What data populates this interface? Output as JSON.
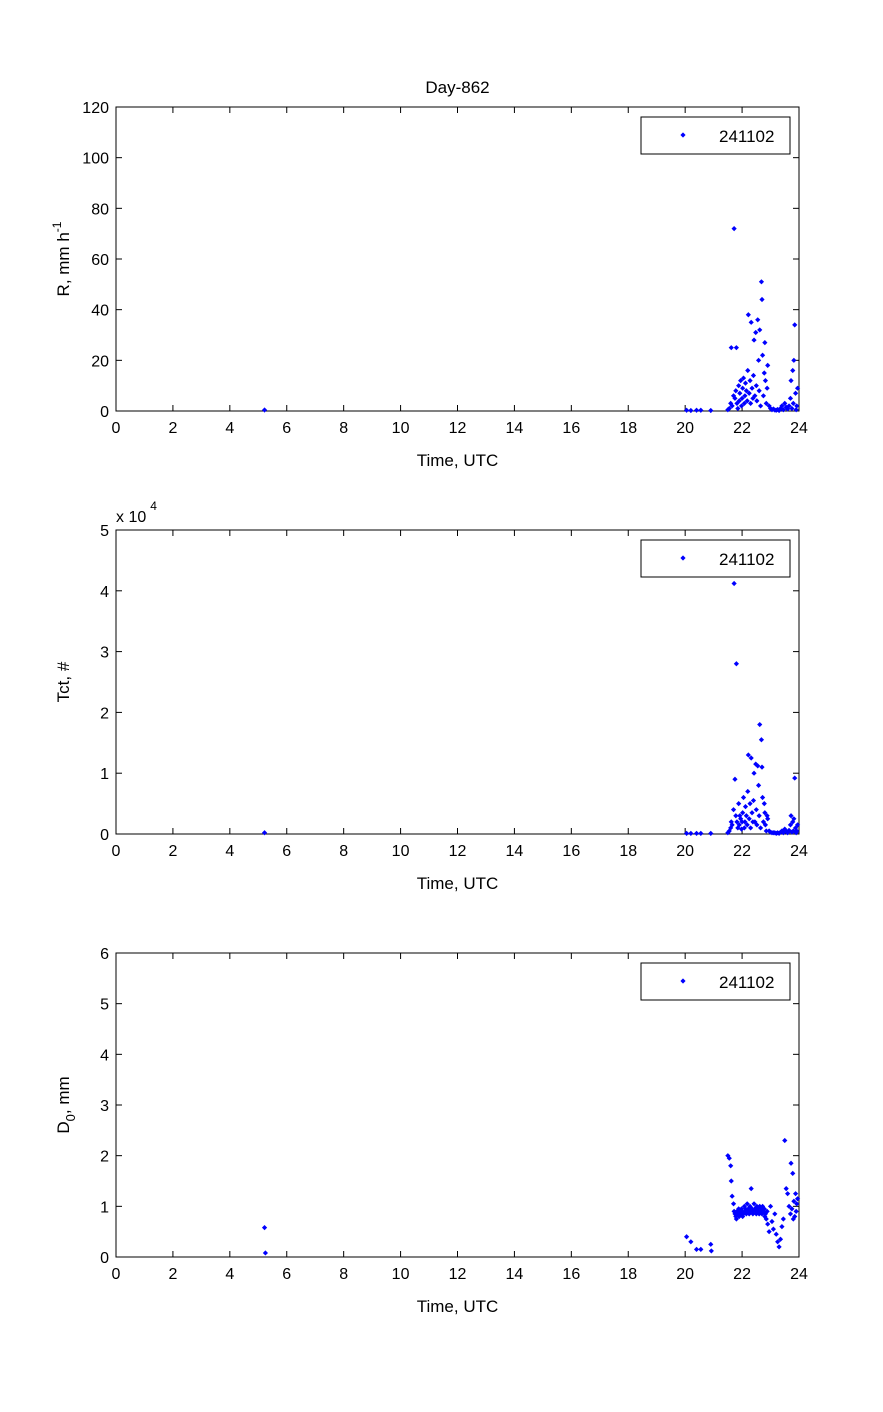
{
  "chart_data": [
    {
      "type": "scatter",
      "title": "Day-862",
      "xlabel": "Time, UTC",
      "ylabel": {
        "base": "R, mm h",
        "sup": "-1"
      },
      "xlim": [
        0,
        24
      ],
      "ylim": [
        0,
        120
      ],
      "xticks": [
        "0",
        "2",
        "4",
        "6",
        "8",
        "10",
        "12",
        "14",
        "16",
        "18",
        "20",
        "22",
        "24"
      ],
      "yticks": [
        "0",
        "20",
        "40",
        "60",
        "80",
        "100",
        "120"
      ],
      "exponent_label": "",
      "legend_position": "top-right",
      "grid": false,
      "marker_color": "#0000ff",
      "series": [
        {
          "name": "241102",
          "x": [
            5.22,
            20.05,
            20.2,
            20.4,
            20.55,
            20.9,
            21.5,
            21.55,
            21.6,
            21.62,
            21.65,
            21.7,
            21.72,
            21.75,
            21.78,
            21.8,
            21.82,
            21.85,
            21.88,
            21.9,
            21.92,
            21.95,
            21.98,
            22.0,
            22.02,
            22.05,
            22.08,
            22.1,
            22.12,
            22.15,
            22.18,
            22.2,
            22.22,
            22.25,
            22.28,
            22.3,
            22.32,
            22.35,
            22.38,
            22.4,
            22.42,
            22.45,
            22.48,
            22.5,
            22.52,
            22.55,
            22.58,
            22.6,
            22.62,
            22.65,
            22.68,
            22.7,
            22.72,
            22.75,
            22.78,
            22.8,
            22.82,
            22.85,
            22.88,
            22.9,
            22.95,
            23.0,
            23.05,
            23.1,
            23.15,
            23.2,
            23.25,
            23.3,
            23.35,
            23.4,
            23.45,
            23.5,
            23.55,
            23.6,
            23.65,
            23.7,
            23.72,
            23.75,
            23.78,
            23.8,
            23.82,
            23.85,
            23.88,
            23.9,
            23.92,
            23.95
          ],
          "y": [
            0.4,
            0.3,
            0.2,
            0.3,
            0.3,
            0.2,
            0.5,
            1,
            3,
            25,
            2,
            6,
            72,
            5,
            8,
            25,
            3,
            1,
            10,
            4,
            7,
            12,
            2,
            5,
            9,
            13,
            3,
            6,
            11,
            8,
            4,
            16,
            38,
            7,
            12,
            3,
            35,
            9,
            5,
            14,
            28,
            6,
            31,
            10,
            4,
            36,
            20,
            8,
            32,
            2,
            51,
            44,
            22,
            6,
            15,
            27,
            12,
            3,
            9,
            18,
            2,
            1,
            0.5,
            0.8,
            0.4,
            0.3,
            0.6,
            0.2,
            1,
            2,
            0.5,
            3,
            1.5,
            0.8,
            2,
            5,
            12,
            1,
            16,
            3,
            20,
            34,
            7,
            0.5,
            2,
            9
          ]
        }
      ]
    },
    {
      "type": "scatter",
      "title": "",
      "xlabel": "Time, UTC",
      "ylabel": {
        "base": "Tct, #",
        "sup": ""
      },
      "xlim": [
        0,
        24
      ],
      "ylim": [
        0,
        5
      ],
      "xticks": [
        "0",
        "2",
        "4",
        "6",
        "8",
        "10",
        "12",
        "14",
        "16",
        "18",
        "20",
        "22",
        "24"
      ],
      "yticks": [
        "0",
        "1",
        "2",
        "3",
        "4",
        "5"
      ],
      "exponent_label": {
        "base": "x 10",
        "sup": "4"
      },
      "legend_position": "top-right",
      "grid": false,
      "marker_color": "#0000ff",
      "series": [
        {
          "name": "241102",
          "x": [
            5.22,
            20.05,
            20.2,
            20.4,
            20.55,
            20.9,
            21.5,
            21.55,
            21.6,
            21.62,
            21.65,
            21.7,
            21.72,
            21.75,
            21.78,
            21.8,
            21.82,
            21.85,
            21.88,
            21.9,
            21.92,
            21.95,
            21.98,
            22.0,
            22.02,
            22.05,
            22.08,
            22.1,
            22.12,
            22.15,
            22.18,
            22.2,
            22.22,
            22.25,
            22.28,
            22.3,
            22.32,
            22.35,
            22.38,
            22.4,
            22.42,
            22.45,
            22.48,
            22.5,
            22.52,
            22.55,
            22.58,
            22.6,
            22.62,
            22.65,
            22.68,
            22.7,
            22.72,
            22.75,
            22.78,
            22.8,
            22.82,
            22.85,
            22.88,
            22.9,
            22.95,
            23.0,
            23.05,
            23.1,
            23.15,
            23.2,
            23.25,
            23.3,
            23.35,
            23.4,
            23.45,
            23.5,
            23.55,
            23.6,
            23.65,
            23.7,
            23.72,
            23.75,
            23.78,
            23.8,
            23.82,
            23.85,
            23.88,
            23.9,
            23.92,
            23.95
          ],
          "y": [
            0.02,
            0.01,
            0.01,
            0.01,
            0.01,
            0.01,
            0.02,
            0.05,
            0.1,
            0.2,
            0.15,
            0.4,
            4.12,
            0.9,
            0.3,
            2.8,
            0.2,
            0.1,
            0.5,
            0.15,
            0.3,
            0.25,
            0.08,
            0.2,
            0.35,
            0.6,
            0.1,
            0.2,
            0.45,
            0.3,
            0.15,
            0.7,
            1.3,
            0.25,
            0.5,
            0.1,
            1.25,
            0.35,
            0.2,
            0.55,
            1.0,
            0.2,
            1.15,
            0.4,
            0.15,
            1.12,
            0.8,
            0.3,
            1.8,
            0.1,
            1.55,
            1.1,
            0.6,
            0.2,
            0.5,
            0.35,
            0.15,
            0.05,
            0.3,
            0.25,
            0.05,
            0.03,
            0.02,
            0.02,
            0.02,
            0.01,
            0.02,
            0.01,
            0.03,
            0.05,
            0.02,
            0.08,
            0.04,
            0.02,
            0.06,
            0.15,
            0.3,
            0.03,
            0.2,
            0.05,
            0.25,
            0.92,
            0.1,
            0.02,
            0.05,
            0.15
          ]
        }
      ]
    },
    {
      "type": "scatter",
      "title": "",
      "xlabel": "Time, UTC",
      "ylabel": {
        "base": "D",
        "sub": "0",
        "tail": ", mm"
      },
      "xlim": [
        0,
        24
      ],
      "ylim": [
        0,
        6
      ],
      "xticks": [
        "0",
        "2",
        "4",
        "6",
        "8",
        "10",
        "12",
        "14",
        "16",
        "18",
        "20",
        "22",
        "24"
      ],
      "yticks": [
        "0",
        "1",
        "2",
        "3",
        "4",
        "5",
        "6"
      ],
      "exponent_label": "",
      "legend_position": "top-right",
      "grid": false,
      "marker_color": "#0000ff",
      "series": [
        {
          "name": "241102",
          "x": [
            5.22,
            5.25,
            20.05,
            20.2,
            20.4,
            20.55,
            20.9,
            20.92,
            21.5,
            21.55,
            21.6,
            21.62,
            21.65,
            21.7,
            21.72,
            21.75,
            21.78,
            21.8,
            21.82,
            21.85,
            21.88,
            21.9,
            21.92,
            21.95,
            21.98,
            22.0,
            22.02,
            22.05,
            22.08,
            22.1,
            22.12,
            22.15,
            22.18,
            22.2,
            22.22,
            22.25,
            22.28,
            22.3,
            22.32,
            22.35,
            22.38,
            22.4,
            22.42,
            22.45,
            22.48,
            22.5,
            22.52,
            22.55,
            22.58,
            22.6,
            22.62,
            22.65,
            22.68,
            22.7,
            22.72,
            22.75,
            22.78,
            22.8,
            22.82,
            22.85,
            22.88,
            22.9,
            22.95,
            23.0,
            23.05,
            23.1,
            23.15,
            23.2,
            23.25,
            23.3,
            23.35,
            23.4,
            23.45,
            23.5,
            23.55,
            23.6,
            23.65,
            23.7,
            23.72,
            23.75,
            23.78,
            23.8,
            23.82,
            23.85,
            23.88,
            23.9,
            23.92,
            23.95
          ],
          "y": [
            0.58,
            0.08,
            0.4,
            0.3,
            0.15,
            0.15,
            0.25,
            0.12,
            2.0,
            1.95,
            1.8,
            1.5,
            1.2,
            1.05,
            0.9,
            0.85,
            0.8,
            0.75,
            0.9,
            0.85,
            0.95,
            0.8,
            0.9,
            0.85,
            0.95,
            0.9,
            0.8,
            0.85,
            1.0,
            0.9,
            0.95,
            0.85,
            1.05,
            0.9,
            0.95,
            0.85,
            1.0,
            0.9,
            1.35,
            0.95,
            0.85,
            0.9,
            1.05,
            0.95,
            0.9,
            0.85,
            1.0,
            0.95,
            0.9,
            0.85,
            1.0,
            0.9,
            0.95,
            0.85,
            1.0,
            0.9,
            0.95,
            0.8,
            0.85,
            0.75,
            0.9,
            0.65,
            0.5,
            1.0,
            0.7,
            0.55,
            0.85,
            0.45,
            0.3,
            0.2,
            0.35,
            0.6,
            0.75,
            2.3,
            1.35,
            1.25,
            1.0,
            0.85,
            1.85,
            0.95,
            1.65,
            0.75,
            1.1,
            0.8,
            1.25,
            0.9,
            1.05,
            1.15
          ]
        }
      ]
    }
  ]
}
